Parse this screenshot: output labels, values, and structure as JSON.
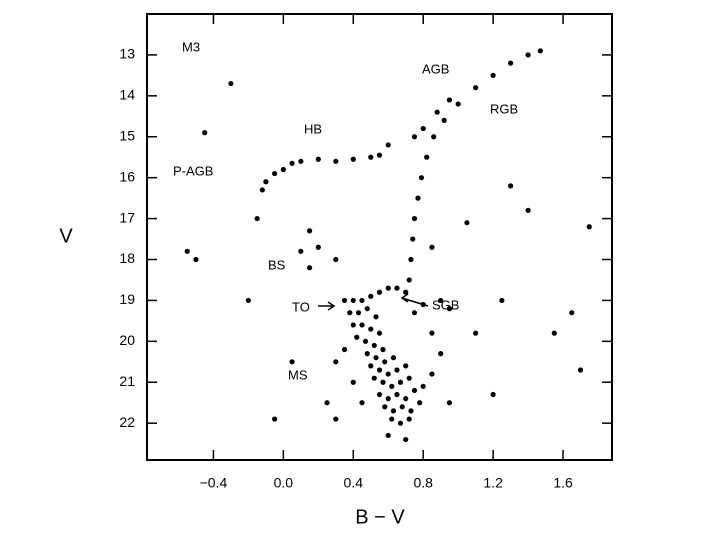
{
  "chart_data": {
    "type": "scatter",
    "xlabel": "B − V",
    "ylabel": "V",
    "xlim": [
      -0.78,
      1.88
    ],
    "ylim": [
      12.0,
      22.9
    ],
    "y_inverted": true,
    "xticks": [
      {
        "value": -0.4,
        "label": "−0.4"
      },
      {
        "value": 0,
        "label": "0.0"
      },
      0.4,
      0.8,
      1.2,
      1.6
    ],
    "yticks": [
      13,
      14,
      15,
      16,
      17,
      18,
      19,
      20,
      21,
      22
    ],
    "annotations": [
      "M3",
      "AGB",
      "RGB",
      "HB",
      "P-AGB",
      "BS",
      "TO",
      "SGB",
      "MS"
    ],
    "series": [
      {
        "color": "#000000",
        "x": [
          0.72,
          0.73,
          0.74,
          0.75,
          0.77,
          0.79,
          0.82,
          0.86,
          0.92,
          1.0,
          1.1,
          1.2,
          1.3,
          1.4,
          1.47,
          0.75,
          0.8,
          0.88,
          0.95,
          -0.12,
          -0.1,
          -0.05,
          0.0,
          0.05,
          0.1,
          0.2,
          0.3,
          0.4,
          0.5,
          0.55,
          0.4,
          0.45,
          0.5,
          0.55,
          0.6,
          0.65,
          0.7,
          0.38,
          0.43,
          0.48,
          0.53,
          0.4,
          0.45,
          0.5,
          0.55,
          0.42,
          0.47,
          0.52,
          0.57,
          0.48,
          0.53,
          0.58,
          0.63,
          0.5,
          0.55,
          0.6,
          0.65,
          0.7,
          0.52,
          0.57,
          0.62,
          0.67,
          0.72,
          0.55,
          0.6,
          0.65,
          0.7,
          0.75,
          0.58,
          0.63,
          0.68,
          0.73,
          0.78,
          0.62,
          0.67,
          0.72,
          0.8,
          0.85,
          0.35,
          0.4,
          0.45,
          0.3,
          0.9,
          0.95,
          0.85,
          0.75,
          0.8,
          0.9,
          0.95,
          0.35,
          0.3,
          0.6,
          0.7,
          -0.45,
          -0.55,
          -0.5,
          -0.15,
          -0.2,
          0.15,
          0.1,
          0.15,
          0.2,
          0.05,
          -0.05,
          1.3,
          1.4,
          1.25,
          1.65,
          1.7,
          1.55,
          1.75,
          1.05,
          1.1,
          0.25,
          1.2,
          -0.3,
          0.85,
          0.6,
          0.3
        ],
        "y": [
          18.5,
          18.0,
          17.5,
          17.0,
          16.5,
          16.0,
          15.5,
          15.0,
          14.6,
          14.2,
          13.8,
          13.5,
          13.2,
          13.0,
          12.9,
          15.0,
          14.8,
          14.4,
          14.1,
          16.3,
          16.1,
          15.9,
          15.8,
          15.65,
          15.6,
          15.55,
          15.6,
          15.55,
          15.5,
          15.45,
          19.0,
          19.0,
          18.9,
          18.8,
          18.7,
          18.7,
          18.8,
          19.3,
          19.3,
          19.2,
          19.4,
          19.6,
          19.6,
          19.7,
          19.8,
          19.9,
          20.0,
          20.1,
          20.2,
          20.3,
          20.4,
          20.5,
          20.4,
          20.6,
          20.7,
          20.8,
          20.7,
          20.6,
          20.9,
          21.0,
          21.1,
          21.0,
          20.9,
          21.3,
          21.4,
          21.3,
          21.4,
          21.2,
          21.6,
          21.7,
          21.6,
          21.7,
          21.5,
          21.9,
          22.0,
          21.9,
          21.1,
          20.8,
          20.2,
          21.0,
          21.5,
          21.9,
          20.3,
          21.5,
          19.8,
          19.3,
          19.1,
          19.0,
          19.2,
          19.0,
          20.5,
          22.3,
          22.4,
          14.9,
          17.8,
          18.0,
          17.0,
          19.0,
          17.3,
          17.8,
          18.2,
          17.7,
          20.5,
          21.9,
          16.2,
          16.8,
          19.0,
          19.3,
          20.7,
          19.8,
          17.2,
          17.1,
          19.8,
          21.5,
          21.3,
          13.7,
          17.7,
          15.2,
          18.0
        ]
      }
    ]
  }
}
